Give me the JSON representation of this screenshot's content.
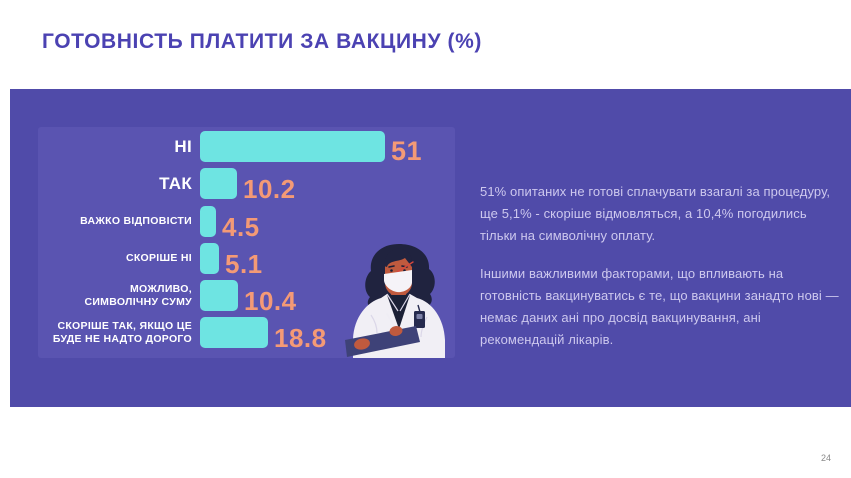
{
  "page": {
    "title": "ГОТОВНІСТЬ ПЛАТИТИ ЗА ВАКЦИНУ (%)",
    "page_number": "24"
  },
  "colors": {
    "title_text": "#4B42B2",
    "panel_background": "#504BA9",
    "chart_background": "#5A54B1",
    "bar_fill": "#6EE4E2",
    "value_label": "#F49A76",
    "category_label": "#FFFFFF",
    "description_text": "#CDC8EE"
  },
  "chart_data": {
    "type": "bar",
    "orientation": "horizontal",
    "title": "ГОТОВНІСТЬ ПЛАТИТИ ЗА ВАКЦИНУ (%)",
    "categories": [
      "НІ",
      "ТАК",
      "ВАЖКО ВІДПОВІСТИ",
      "СКОРІШЕ НІ",
      "МОЖЛИВО, СИМВОЛІЧНУ СУМУ",
      "СКОРІШЕ ТАК, ЯКЩО ЦЕ БУДЕ НЕ НАДТО ДОРОГО"
    ],
    "values": [
      51,
      10.2,
      4.5,
      5.1,
      10.4,
      18.8
    ],
    "xlim": [
      0,
      51
    ],
    "unit": "%",
    "grid": false,
    "legend": false,
    "value_labels_shown": true
  },
  "chart": {
    "rows": [
      {
        "label": "НІ",
        "value": 51,
        "value_label": "51"
      },
      {
        "label": "ТАК",
        "value": 10.2,
        "value_label": "10.2"
      },
      {
        "label": "ВАЖКО ВІДПОВІСТИ",
        "value": 4.5,
        "value_label": "4.5"
      },
      {
        "label": "СКОРІШЕ НІ",
        "value": 5.1,
        "value_label": "5.1"
      },
      {
        "label": "МОЖЛИВО,\nСИМВОЛІЧНУ СУМУ",
        "value": 10.4,
        "value_label": "10.4"
      },
      {
        "label": "СКОРІШЕ ТАК, ЯКЩО ЦЕ\nБУДЕ НЕ НАДТО ДОРОГО",
        "value": 18.8,
        "value_label": "18.8"
      }
    ]
  },
  "description": {
    "paragraph1": "51% опитаних не готові сплачувати взагалі за процедуру, ще 5,1% - скоріше відмовляться, а 10,4% погодились тільки на символічну оплату.",
    "paragraph2": "Іншими важливими факторами, що впливають на готовність вакцинуватись є те, що вакцини занадто нові — немає даних ані про досвід вакцинування, ані рекомендацій лікарів."
  },
  "illustration": {
    "name": "doctor-with-clipboard"
  }
}
